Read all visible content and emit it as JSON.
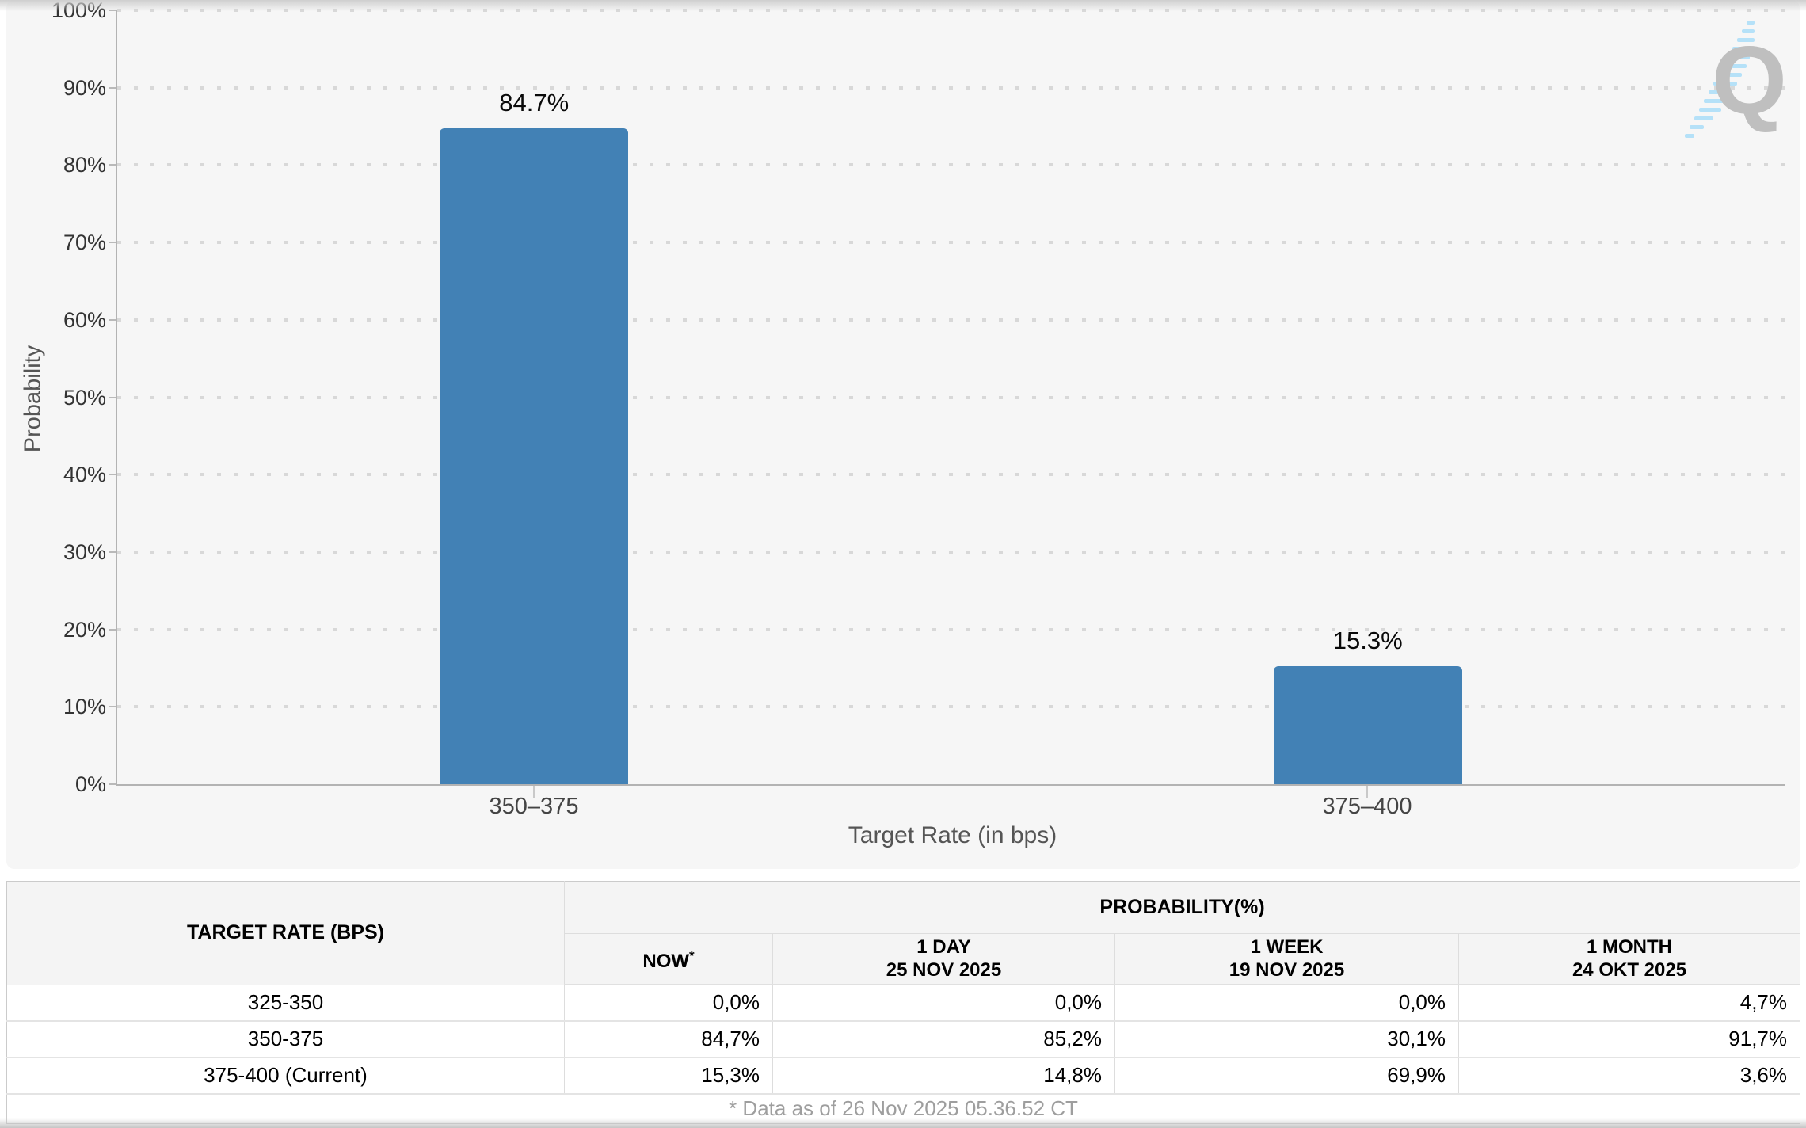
{
  "chart_data": {
    "type": "bar",
    "title": "",
    "ylabel": "Probability",
    "xlabel": "Target Rate (in bps)",
    "categories": [
      "350–375",
      "375–400"
    ],
    "values": [
      84.7,
      15.3
    ],
    "value_labels": [
      "84.7%",
      "15.3%"
    ],
    "ylim": [
      0,
      100
    ],
    "ytick_step": 10,
    "ytick_labels": [
      "0%",
      "10%",
      "20%",
      "30%",
      "40%",
      "50%",
      "60%",
      "70%",
      "80%",
      "90%",
      "100%"
    ],
    "grid": "horizontal-dotted",
    "legend": "none",
    "bar_color": "#4281B5"
  },
  "watermark": {
    "letter": "Q",
    "stripe_color": "#B5E1F8",
    "letter_color": "#BFBFBF"
  },
  "table": {
    "corner_header": "TARGET RATE (BPS)",
    "group_header": "PROBABILITY(%)",
    "columns": [
      {
        "line1": "NOW",
        "sup": "*",
        "line2": ""
      },
      {
        "line1": "1 DAY",
        "line2": "25 NOV 2025"
      },
      {
        "line1": "1 WEEK",
        "line2": "19 NOV 2025"
      },
      {
        "line1": "1 MONTH",
        "line2": "24 OKT 2025"
      }
    ],
    "rows": [
      {
        "rate": "325-350",
        "now": "0,0%",
        "day": "0,0%",
        "week": "0,0%",
        "month": "4,7%"
      },
      {
        "rate": "350-375",
        "now": "84,7%",
        "day": "85,2%",
        "week": "30,1%",
        "month": "91,7%"
      },
      {
        "rate": "375-400 (Current)",
        "now": "15,3%",
        "day": "14,8%",
        "week": "69,9%",
        "month": "3,6%"
      }
    ],
    "footnote": "* Data as of 26 Nov 2025 05.36.52 CT",
    "now_highlight_color": "#FBF8D9"
  }
}
